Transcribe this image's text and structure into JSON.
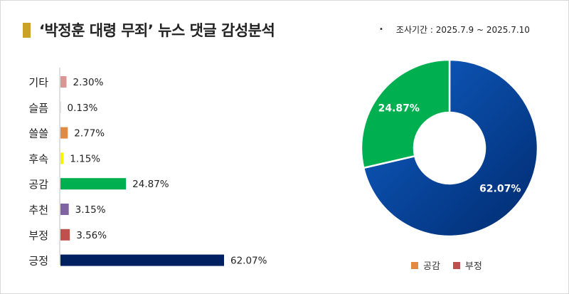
{
  "title": "‘박정훈 대령 무죄’ 뉴스 댓글 감성분석",
  "period": "조사기간 : 2025.7.9 ~ 2025.7.10",
  "period_bullet": "•",
  "chart_data": [
    {
      "type": "bar",
      "orientation": "horizontal",
      "categories": [
        "기타",
        "슬픔",
        "쓸쓸",
        "후속",
        "공감",
        "추천",
        "부정",
        "긍정"
      ],
      "values": [
        2.3,
        0.13,
        2.77,
        1.15,
        24.87,
        3.15,
        3.56,
        62.07
      ],
      "labels": [
        "2.30%",
        "0.13%",
        "2.77%",
        "1.15%",
        "24.87%",
        "3.15%",
        "3.56%",
        "62.07%"
      ],
      "colors": [
        "#d99694",
        "#c0c0c0",
        "#e08a43",
        "#f5f500",
        "#00b050",
        "#8064a2",
        "#c0504d",
        "#002060"
      ],
      "unit": "%"
    },
    {
      "type": "pie",
      "variant": "donut",
      "slices": [
        {
          "label": "62.07%",
          "value": 62.07,
          "color": "#0a4aa0"
        },
        {
          "label": "24.87%",
          "value": 24.87,
          "color": "#00b050"
        }
      ],
      "legend": [
        {
          "name": "공감",
          "color": "#e08a43"
        },
        {
          "name": "부정",
          "color": "#c0504d"
        }
      ],
      "legend_position": "bottom"
    }
  ]
}
